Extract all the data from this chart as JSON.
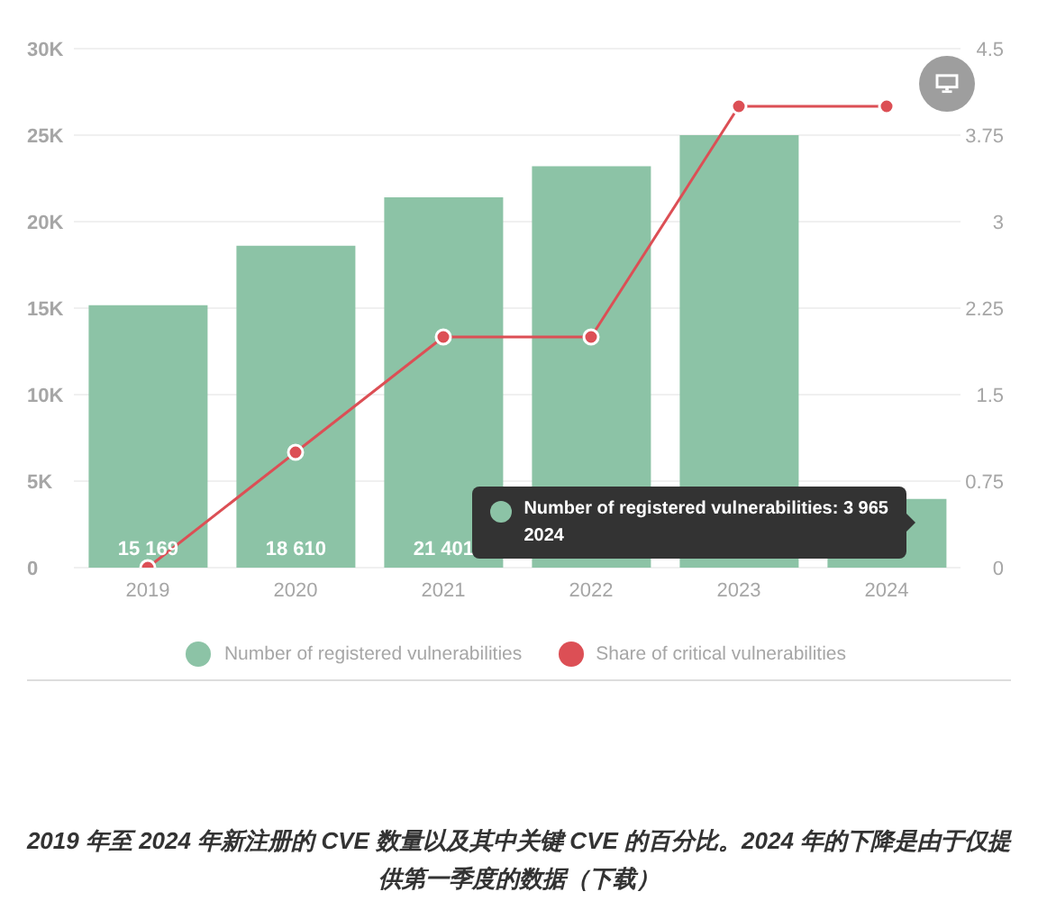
{
  "chart_data": {
    "type": "bar",
    "categories": [
      "2019",
      "2020",
      "2021",
      "2022",
      "2023",
      "2024"
    ],
    "series": [
      {
        "name": "Number of registered vulnerabilities",
        "color": "#8cc3a6",
        "values": [
          15169,
          18610,
          21401,
          23200,
          25000,
          3965
        ],
        "value_labels": [
          "15 169",
          "18 610",
          "21 401",
          null,
          null,
          null
        ]
      },
      {
        "name": "Share of critical vulnerabilities",
        "type": "line",
        "axis": "y2",
        "color": "#dc4f55",
        "values": [
          0,
          1,
          2,
          2,
          4,
          4
        ]
      }
    ],
    "ylim": [
      0,
      30000
    ],
    "yticks": [
      0,
      {
        "value": 5000,
        "label": "5K"
      },
      {
        "value": 10000,
        "label": "10K"
      },
      {
        "value": 15000,
        "label": "15K"
      },
      {
        "value": 20000,
        "label": "20K"
      },
      {
        "value": 25000,
        "label": "25K"
      },
      {
        "value": 30000,
        "label": "30K"
      }
    ],
    "y2lim": [
      0,
      4.5
    ],
    "y2ticks": [
      0,
      0.75,
      1.5,
      2.25,
      3,
      3.75,
      4.5
    ],
    "grid": "y",
    "legend": "bottom",
    "marker": "circle",
    "annotations": [
      {
        "text": "Number of registered vulnerabilities: 3 965\n2024",
        "x": "2024",
        "y": 3965
      },
      "2019 年至 2024 年新注册的 CVE 数量以及其中关键 CVE 的百分比。2024 年的下降是由于仅提供第一季度的数据（下载）"
    ]
  }
}
